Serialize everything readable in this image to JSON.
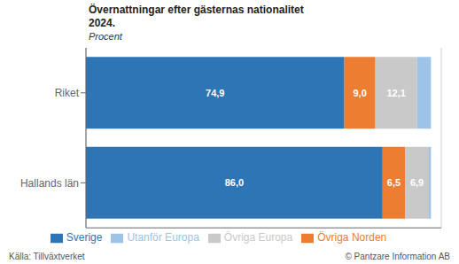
{
  "chart_data": {
    "type": "bar",
    "orientation": "horizontal",
    "stacked": true,
    "title": "Övernattningar efter gästernas nationalitet\n2024.",
    "subtitle": "Procent",
    "categories": [
      "Hallands län",
      "Riket"
    ],
    "series": [
      {
        "name": "Sverige",
        "color": "#2E75B6",
        "values": [
          86.0,
          74.9
        ],
        "value_labels": [
          "86,0",
          "74,9"
        ]
      },
      {
        "name": "Övriga Norden",
        "color": "#ED7D31",
        "values": [
          6.5,
          9.0
        ],
        "value_labels": [
          "6,5",
          "9,0"
        ]
      },
      {
        "name": "Övriga Europa",
        "color": "#C9C9C9",
        "values": [
          6.9,
          12.1
        ],
        "value_labels": [
          "6,9",
          "12,1"
        ]
      },
      {
        "name": "Utanför Europa",
        "color": "#9DC3E6",
        "values": [
          0.6,
          4.0
        ],
        "value_labels": [
          null,
          null
        ]
      }
    ],
    "data_labels": true,
    "xlim": [
      0,
      103
    ],
    "xticks": [
      0,
      20,
      40,
      60,
      80,
      100
    ],
    "tick_labels": "y",
    "grid": true,
    "legend": "bottom",
    "annotations": [
      "Källa: Tillväxtverket",
      "© Pantzare Information AB"
    ]
  }
}
